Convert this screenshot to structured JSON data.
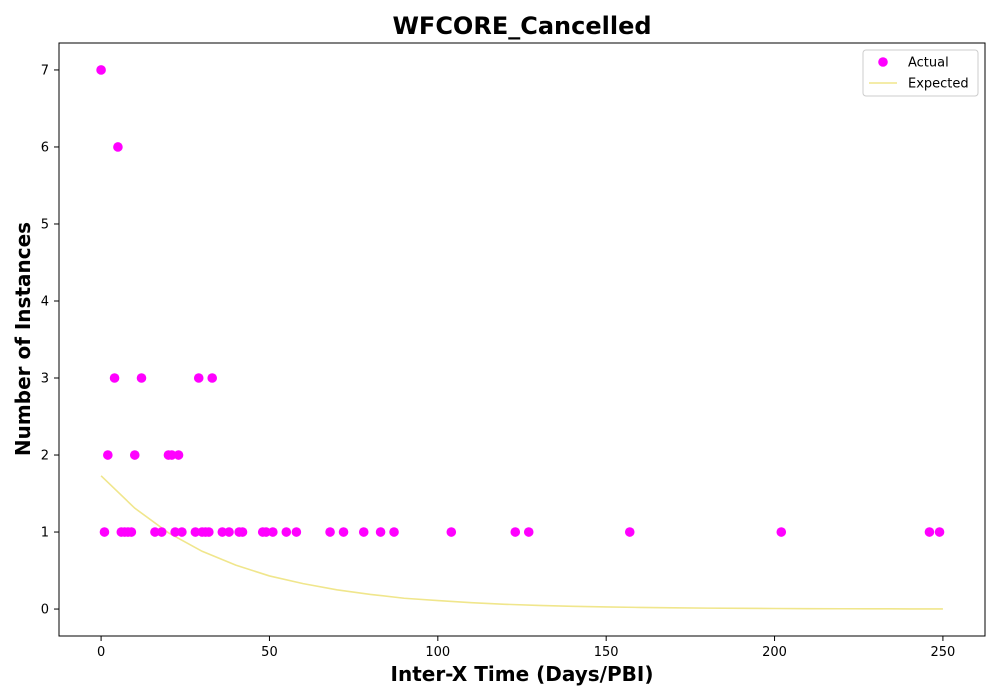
{
  "chart_data": {
    "type": "scatter",
    "title": "WFCORE_Cancelled",
    "xlabel": "Inter-X Time (Days/PBI)",
    "ylabel": "Number of Instances",
    "xlim": [
      -12.5,
      262.5
    ],
    "ylim": [
      -0.35,
      7.35
    ],
    "xticks": [
      0,
      50,
      100,
      150,
      200,
      250
    ],
    "yticks": [
      0,
      1,
      2,
      3,
      4,
      5,
      6,
      7
    ],
    "grid": false,
    "legend_position": "top-right",
    "series": [
      {
        "name": "Actual",
        "kind": "scatter",
        "color": "#ff00ff",
        "points": [
          [
            0,
            7
          ],
          [
            1,
            1
          ],
          [
            2,
            2
          ],
          [
            4,
            3
          ],
          [
            5,
            6
          ],
          [
            6,
            1
          ],
          [
            7,
            1
          ],
          [
            8,
            1
          ],
          [
            9,
            1
          ],
          [
            10,
            2
          ],
          [
            12,
            3
          ],
          [
            16,
            1
          ],
          [
            18,
            1
          ],
          [
            20,
            2
          ],
          [
            21,
            2
          ],
          [
            22,
            1
          ],
          [
            23,
            2
          ],
          [
            24,
            1
          ],
          [
            28,
            1
          ],
          [
            29,
            3
          ],
          [
            30,
            1
          ],
          [
            31,
            1
          ],
          [
            32,
            1
          ],
          [
            33,
            3
          ],
          [
            36,
            1
          ],
          [
            38,
            1
          ],
          [
            41,
            1
          ],
          [
            42,
            1
          ],
          [
            48,
            1
          ],
          [
            49,
            1
          ],
          [
            51,
            1
          ],
          [
            55,
            1
          ],
          [
            58,
            1
          ],
          [
            68,
            1
          ],
          [
            72,
            1
          ],
          [
            78,
            1
          ],
          [
            83,
            1
          ],
          [
            87,
            1
          ],
          [
            104,
            1
          ],
          [
            123,
            1
          ],
          [
            127,
            1
          ],
          [
            157,
            1
          ],
          [
            202,
            1
          ],
          [
            246,
            1
          ],
          [
            249,
            1
          ]
        ]
      },
      {
        "name": "Expected",
        "kind": "line",
        "color": "#f0e68c",
        "points": [
          [
            0,
            1.73
          ],
          [
            10,
            1.31
          ],
          [
            20,
            0.99
          ],
          [
            30,
            0.75
          ],
          [
            40,
            0.57
          ],
          [
            50,
            0.43
          ],
          [
            60,
            0.33
          ],
          [
            70,
            0.25
          ],
          [
            80,
            0.19
          ],
          [
            90,
            0.14
          ],
          [
            100,
            0.11
          ],
          [
            110,
            0.082
          ],
          [
            120,
            0.062
          ],
          [
            130,
            0.047
          ],
          [
            140,
            0.036
          ],
          [
            150,
            0.027
          ],
          [
            160,
            0.021
          ],
          [
            170,
            0.016
          ],
          [
            180,
            0.012
          ],
          [
            190,
            0.009
          ],
          [
            200,
            0.007
          ],
          [
            210,
            0.005
          ],
          [
            220,
            0.004
          ],
          [
            230,
            0.003
          ],
          [
            240,
            0.002
          ],
          [
            250,
            0.002
          ]
        ]
      }
    ]
  }
}
